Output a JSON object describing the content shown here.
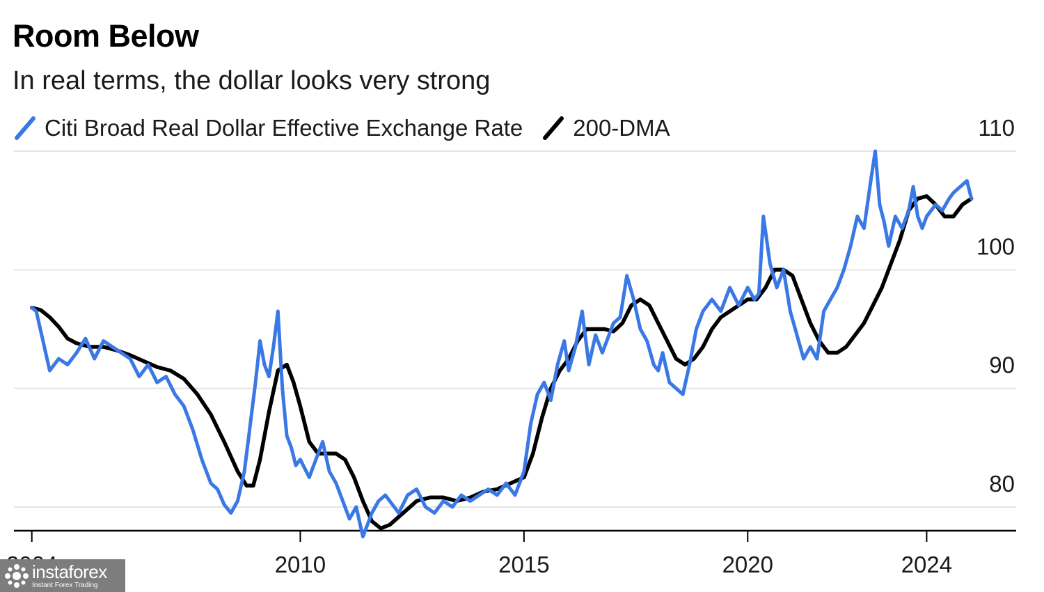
{
  "title": "Room Below",
  "subtitle": "In real terms, the dollar looks very strong",
  "colors": {
    "rate": "#3a78e6",
    "dma": "#000000",
    "grid": "#e4e4e4",
    "axis": "#000000"
  },
  "watermark": {
    "brand": "instaforex",
    "tagline": "Instant Forex Trading"
  },
  "chart_data": {
    "type": "line",
    "title": "Room Below",
    "subtitle": "In real terms, the dollar looks very strong",
    "xlabel": "",
    "ylabel": "",
    "xlim": [
      2003.6,
      2026.0
    ],
    "ylim": [
      78,
      111
    ],
    "x_ticks": [
      2004,
      2010,
      2015,
      2020,
      2024
    ],
    "x_tick_labels": [
      "2004",
      "2010",
      "2015",
      "2020",
      "2024"
    ],
    "y_ticks": [
      80,
      90,
      100,
      110
    ],
    "y_tick_labels": [
      "80",
      "90",
      "100",
      "110"
    ],
    "y_axis_side": "right",
    "grid": "horizontal",
    "legend_position": "top-left",
    "series": [
      {
        "name": "Citi Broad Real Dollar Effective Exchange Rate",
        "color": "#3a78e6",
        "x": [
          2004.0,
          2004.1,
          2004.25,
          2004.4,
          2004.6,
          2004.8,
          2005.0,
          2005.2,
          2005.4,
          2005.6,
          2005.8,
          2006.0,
          2006.2,
          2006.4,
          2006.6,
          2006.8,
          2007.0,
          2007.2,
          2007.4,
          2007.6,
          2007.8,
          2008.0,
          2008.15,
          2008.3,
          2008.45,
          2008.6,
          2008.75,
          2008.9,
          2009.0,
          2009.1,
          2009.2,
          2009.3,
          2009.4,
          2009.5,
          2009.6,
          2009.7,
          2009.8,
          2009.9,
          2010.0,
          2010.2,
          2010.35,
          2010.5,
          2010.65,
          2010.8,
          2010.95,
          2011.1,
          2011.25,
          2011.4,
          2011.5,
          2011.6,
          2011.75,
          2011.9,
          2012.0,
          2012.2,
          2012.4,
          2012.6,
          2012.8,
          2013.0,
          2013.2,
          2013.4,
          2013.6,
          2013.8,
          2014.0,
          2014.2,
          2014.4,
          2014.6,
          2014.8,
          2015.0,
          2015.15,
          2015.3,
          2015.45,
          2015.6,
          2015.75,
          2015.9,
          2016.0,
          2016.15,
          2016.3,
          2016.45,
          2016.6,
          2016.75,
          2016.9,
          2017.0,
          2017.15,
          2017.3,
          2017.45,
          2017.6,
          2017.75,
          2017.9,
          2018.0,
          2018.1,
          2018.25,
          2018.4,
          2018.55,
          2018.7,
          2018.85,
          2019.0,
          2019.2,
          2019.4,
          2019.6,
          2019.8,
          2020.0,
          2020.15,
          2020.25,
          2020.35,
          2020.5,
          2020.65,
          2020.8,
          2020.95,
          2021.1,
          2021.25,
          2021.4,
          2021.55,
          2021.7,
          2021.85,
          2022.0,
          2022.15,
          2022.3,
          2022.45,
          2022.6,
          2022.75,
          2022.85,
          2022.95,
          2023.05,
          2023.15,
          2023.3,
          2023.45,
          2023.6,
          2023.7,
          2023.8,
          2023.9,
          2024.0,
          2024.1,
          2024.2,
          2024.35,
          2024.5,
          2024.6,
          2024.75,
          2024.9,
          2025.0
        ],
        "values": [
          96.8,
          96.5,
          94.0,
          91.5,
          92.5,
          92.0,
          93.0,
          94.2,
          92.5,
          94.0,
          93.5,
          93.0,
          92.5,
          91.0,
          92.0,
          90.5,
          91.0,
          89.5,
          88.5,
          86.5,
          84.0,
          82.0,
          81.5,
          80.2,
          79.5,
          80.5,
          83.0,
          87.5,
          90.5,
          94.0,
          92.0,
          91.0,
          93.5,
          96.5,
          90.0,
          86.0,
          85.0,
          83.5,
          84.0,
          82.5,
          84.0,
          85.5,
          83.0,
          82.0,
          80.5,
          79.0,
          80.0,
          77.5,
          78.5,
          79.5,
          80.5,
          81.0,
          80.5,
          79.5,
          81.0,
          81.5,
          80.0,
          79.5,
          80.5,
          80.0,
          81.0,
          80.5,
          81.0,
          81.5,
          81.0,
          82.0,
          81.0,
          83.0,
          87.0,
          89.5,
          90.5,
          89.0,
          92.0,
          94.0,
          91.5,
          93.5,
          96.5,
          92.0,
          94.5,
          93.0,
          94.5,
          95.5,
          96.0,
          99.5,
          97.5,
          95.0,
          94.0,
          92.0,
          91.5,
          93.0,
          90.5,
          90.0,
          89.5,
          92.0,
          95.0,
          96.5,
          97.5,
          96.5,
          98.5,
          97.0,
          98.5,
          97.5,
          98.0,
          104.5,
          100.5,
          98.5,
          100.0,
          96.5,
          94.5,
          92.5,
          93.5,
          92.5,
          96.5,
          97.5,
          98.5,
          100.0,
          102.0,
          104.5,
          103.5,
          107.5,
          110.0,
          105.5,
          104.0,
          102.0,
          104.5,
          103.5,
          105.0,
          107.0,
          104.5,
          103.5,
          104.5,
          105.0,
          105.5,
          105.0,
          106.0,
          106.5,
          107.0,
          107.5,
          106.0
        ]
      },
      {
        "name": "200-DMA",
        "color": "#000000",
        "x": [
          2004.0,
          2004.2,
          2004.4,
          2004.6,
          2004.8,
          2005.0,
          2005.3,
          2005.6,
          2005.9,
          2006.2,
          2006.5,
          2006.8,
          2007.1,
          2007.4,
          2007.7,
          2008.0,
          2008.3,
          2008.6,
          2008.8,
          2008.95,
          2009.1,
          2009.3,
          2009.5,
          2009.7,
          2009.85,
          2010.0,
          2010.2,
          2010.4,
          2010.6,
          2010.8,
          2011.0,
          2011.2,
          2011.4,
          2011.6,
          2011.8,
          2012.0,
          2012.3,
          2012.6,
          2012.9,
          2013.2,
          2013.5,
          2013.8,
          2014.1,
          2014.4,
          2014.7,
          2015.0,
          2015.2,
          2015.4,
          2015.6,
          2015.8,
          2016.0,
          2016.2,
          2016.4,
          2016.6,
          2016.8,
          2017.0,
          2017.2,
          2017.4,
          2017.6,
          2017.8,
          2018.0,
          2018.2,
          2018.4,
          2018.6,
          2018.8,
          2019.0,
          2019.2,
          2019.4,
          2019.6,
          2019.8,
          2020.0,
          2020.2,
          2020.4,
          2020.6,
          2020.8,
          2021.0,
          2021.2,
          2021.4,
          2021.6,
          2021.8,
          2022.0,
          2022.2,
          2022.4,
          2022.6,
          2022.8,
          2023.0,
          2023.2,
          2023.4,
          2023.6,
          2023.8,
          2024.0,
          2024.2,
          2024.4,
          2024.6,
          2024.8,
          2025.0
        ],
        "values": [
          96.8,
          96.6,
          96.0,
          95.2,
          94.2,
          93.8,
          93.5,
          93.5,
          93.2,
          92.8,
          92.3,
          91.8,
          91.5,
          90.8,
          89.5,
          87.8,
          85.5,
          83.0,
          81.8,
          81.8,
          84.0,
          88.0,
          91.5,
          92.0,
          90.5,
          88.5,
          85.5,
          84.5,
          84.5,
          84.5,
          84.0,
          82.5,
          80.5,
          78.8,
          78.2,
          78.5,
          79.5,
          80.5,
          80.8,
          80.8,
          80.5,
          80.8,
          81.3,
          81.5,
          82.0,
          82.5,
          84.5,
          87.5,
          90.0,
          91.5,
          92.5,
          94.0,
          95.0,
          95.0,
          95.0,
          94.8,
          95.5,
          97.0,
          97.5,
          97.0,
          95.5,
          94.0,
          92.5,
          92.0,
          92.5,
          93.5,
          95.0,
          96.0,
          96.5,
          97.0,
          97.5,
          97.5,
          98.5,
          100.0,
          100.0,
          99.5,
          97.5,
          95.5,
          94.0,
          93.0,
          93.0,
          93.5,
          94.5,
          95.5,
          97.0,
          98.5,
          100.5,
          102.5,
          105.0,
          106.0,
          106.2,
          105.5,
          104.5,
          104.5,
          105.5,
          106.0
        ]
      }
    ]
  }
}
